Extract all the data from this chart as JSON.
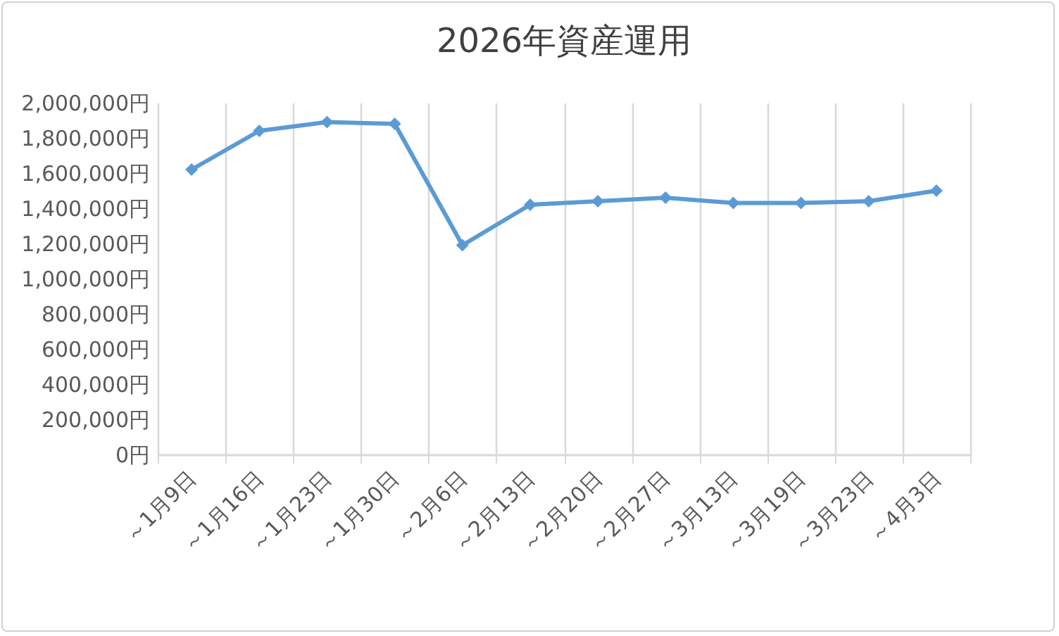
{
  "chart_data": {
    "type": "line",
    "title": "2026年資産運用",
    "categories": [
      "～1月9日",
      "～1月16日",
      "～1月23日",
      "～1月30日",
      "～2月6日",
      "～2月13日",
      "～2月20日",
      "～2月27日",
      "～3月13日",
      "～3月19日",
      "～3月23日",
      "～4月3日"
    ],
    "series": [
      {
        "color": "#5b9bd5",
        "values": [
          1620000,
          1840000,
          1890000,
          1880000,
          1190000,
          1420000,
          1440000,
          1460000,
          1430000,
          1430000,
          1440000,
          1500000
        ]
      }
    ],
    "ylim": [
      0,
      2000000
    ],
    "yticks": [
      {
        "value": 0,
        "label": "0円"
      },
      {
        "value": 200000,
        "label": "200,000円"
      },
      {
        "value": 400000,
        "label": "400,000円"
      },
      {
        "value": 600000,
        "label": "600,000円"
      },
      {
        "value": 800000,
        "label": "800,000円"
      },
      {
        "value": 1000000,
        "label": "1,000,000円"
      },
      {
        "value": 1200000,
        "label": "1,200,000円"
      },
      {
        "value": 1400000,
        "label": "1,400,000円"
      },
      {
        "value": 1600000,
        "label": "1,600,000円"
      },
      {
        "value": 1800000,
        "label": "1,800,000円"
      },
      {
        "value": 2000000,
        "label": "2,000,000円"
      }
    ],
    "grid": "x",
    "marker": "diamond",
    "line_style": "solid"
  }
}
